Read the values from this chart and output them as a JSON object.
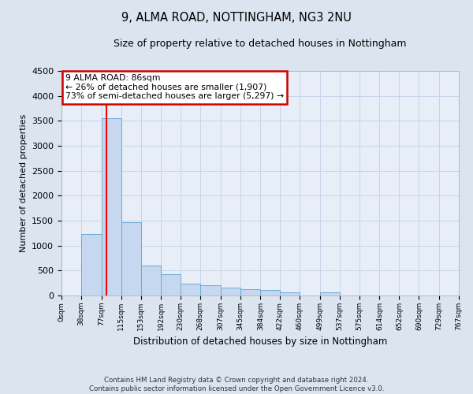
{
  "title": "9, ALMA ROAD, NOTTINGHAM, NG3 2NU",
  "subtitle": "Size of property relative to detached houses in Nottingham",
  "xlabel": "Distribution of detached houses by size in Nottingham",
  "ylabel": "Number of detached properties",
  "footer_line1": "Contains HM Land Registry data © Crown copyright and database right 2024.",
  "footer_line2": "Contains public sector information licensed under the Open Government Licence v3.0.",
  "bins": [
    0,
    38,
    77,
    115,
    153,
    192,
    230,
    268,
    307,
    345,
    384,
    422,
    460,
    499,
    537,
    575,
    614,
    652,
    690,
    729,
    767
  ],
  "bar_heights": [
    0,
    1230,
    3550,
    1470,
    600,
    430,
    230,
    200,
    165,
    130,
    110,
    70,
    0,
    60,
    0,
    0,
    0,
    0,
    0,
    0
  ],
  "bar_color": "#c5d8ef",
  "bar_edge_color": "#6aaad4",
  "red_line_x": 86,
  "ylim": [
    0,
    4500
  ],
  "yticks": [
    0,
    500,
    1000,
    1500,
    2000,
    2500,
    3000,
    3500,
    4000,
    4500
  ],
  "annotation_line1": "9 ALMA ROAD: 86sqm",
  "annotation_line2": "← 26% of detached houses are smaller (1,907)",
  "annotation_line3": "73% of semi-detached houses are larger (5,297) →",
  "annotation_box_color": "#ffffff",
  "annotation_box_edge_color": "#cc0000",
  "grid_color": "#c8d4e8",
  "background_color": "#dce4f0",
  "plot_background_color": "#e8eef8"
}
